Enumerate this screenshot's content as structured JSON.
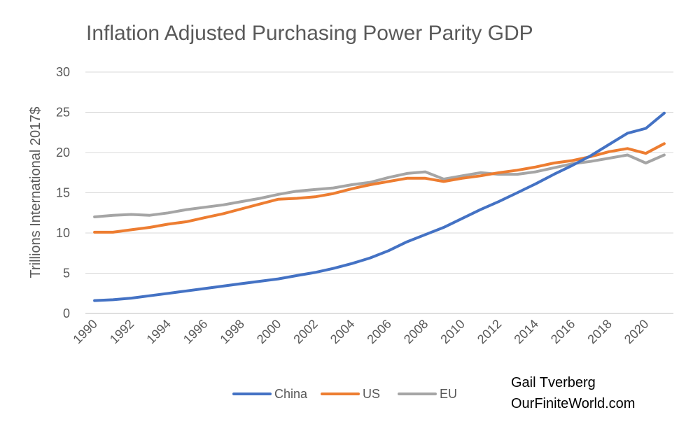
{
  "chart_data": {
    "type": "line",
    "title": "Inflation Adjusted Purchasing Power Parity GDP",
    "ylabel": "Trillions International 2017$",
    "xlabel": "",
    "ylim": [
      0,
      30
    ],
    "yticks": [
      "0",
      "5",
      "10",
      "15",
      "20",
      "25",
      "30"
    ],
    "xtick_labels": [
      "1990",
      "1992",
      "1994",
      "1996",
      "1998",
      "2000",
      "2002",
      "2004",
      "2006",
      "2008",
      "2010",
      "2012",
      "2014",
      "2016",
      "2018",
      "2020"
    ],
    "x": [
      1990,
      1991,
      1992,
      1993,
      1994,
      1995,
      1996,
      1997,
      1998,
      1999,
      2000,
      2001,
      2002,
      2003,
      2004,
      2005,
      2006,
      2007,
      2008,
      2009,
      2010,
      2011,
      2012,
      2013,
      2014,
      2015,
      2016,
      2017,
      2018,
      2019,
      2020,
      2021
    ],
    "grid": true,
    "legend_position": "bottom",
    "series": [
      {
        "name": "China",
        "color": "#4472C4",
        "values": [
          1.6,
          1.7,
          1.9,
          2.2,
          2.5,
          2.8,
          3.1,
          3.4,
          3.7,
          4.0,
          4.3,
          4.7,
          5.1,
          5.6,
          6.2,
          6.9,
          7.8,
          8.9,
          9.8,
          10.7,
          11.8,
          12.9,
          13.9,
          15.0,
          16.1,
          17.3,
          18.4,
          19.6,
          21.0,
          22.4,
          23.0,
          24.9
        ]
      },
      {
        "name": "US",
        "color": "#ED7D31",
        "values": [
          10.1,
          10.1,
          10.4,
          10.7,
          11.1,
          11.4,
          11.9,
          12.4,
          13.0,
          13.6,
          14.2,
          14.3,
          14.5,
          14.9,
          15.5,
          16.0,
          16.4,
          16.8,
          16.8,
          16.4,
          16.8,
          17.1,
          17.5,
          17.8,
          18.2,
          18.7,
          19.0,
          19.5,
          20.1,
          20.5,
          19.9,
          21.1
        ]
      },
      {
        "name": "EU",
        "color": "#A5A5A5",
        "values": [
          12.0,
          12.2,
          12.3,
          12.2,
          12.5,
          12.9,
          13.2,
          13.5,
          13.9,
          14.3,
          14.8,
          15.2,
          15.4,
          15.6,
          16.0,
          16.3,
          16.9,
          17.4,
          17.6,
          16.7,
          17.1,
          17.5,
          17.3,
          17.3,
          17.6,
          18.1,
          18.6,
          18.9,
          19.3,
          19.7,
          18.7,
          19.7
        ]
      }
    ]
  },
  "credit": {
    "line1": "Gail Tverberg",
    "line2": "OurFiniteWorld.com"
  }
}
